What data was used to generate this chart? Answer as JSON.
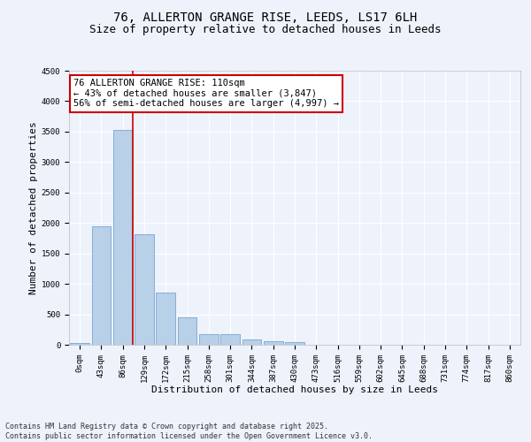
{
  "title_line1": "76, ALLERTON GRANGE RISE, LEEDS, LS17 6LH",
  "title_line2": "Size of property relative to detached houses in Leeds",
  "xlabel": "Distribution of detached houses by size in Leeds",
  "ylabel": "Number of detached properties",
  "categories": [
    "0sqm",
    "43sqm",
    "86sqm",
    "129sqm",
    "172sqm",
    "215sqm",
    "258sqm",
    "301sqm",
    "344sqm",
    "387sqm",
    "430sqm",
    "473sqm",
    "516sqm",
    "559sqm",
    "602sqm",
    "645sqm",
    "688sqm",
    "731sqm",
    "774sqm",
    "817sqm",
    "860sqm"
  ],
  "values": [
    30,
    1950,
    3530,
    1810,
    860,
    450,
    175,
    170,
    90,
    55,
    40,
    0,
    0,
    0,
    0,
    0,
    0,
    0,
    0,
    0,
    0
  ],
  "bar_color": "#b8d0e8",
  "bar_edge_color": "#6699cc",
  "vline_x": 2.45,
  "vline_color": "#cc0000",
  "annotation_text": "76 ALLERTON GRANGE RISE: 110sqm\n← 43% of detached houses are smaller (3,847)\n56% of semi-detached houses are larger (4,997) →",
  "annotation_box_color": "#ffffff",
  "annotation_box_edge_color": "#cc0000",
  "ylim": [
    0,
    4500
  ],
  "yticks": [
    0,
    500,
    1000,
    1500,
    2000,
    2500,
    3000,
    3500,
    4000,
    4500
  ],
  "footnote": "Contains HM Land Registry data © Crown copyright and database right 2025.\nContains public sector information licensed under the Open Government Licence v3.0.",
  "background_color": "#eef2fb",
  "grid_color": "#ffffff",
  "title_fontsize": 10,
  "subtitle_fontsize": 9,
  "axis_label_fontsize": 8,
  "tick_fontsize": 6.5,
  "annotation_fontsize": 7.5,
  "footnote_fontsize": 6
}
